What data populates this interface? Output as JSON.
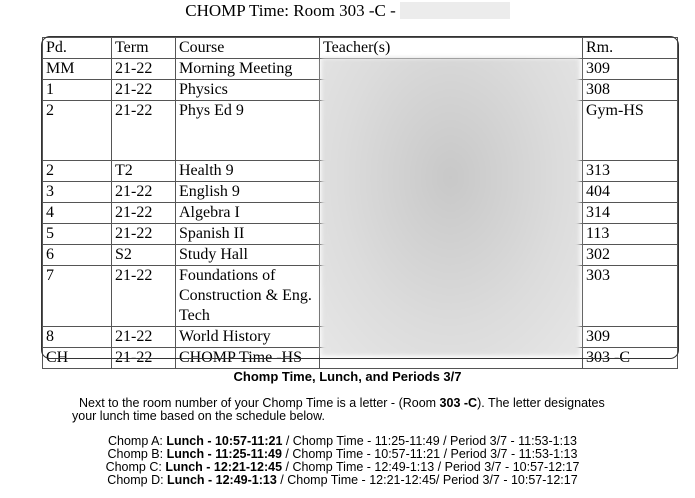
{
  "title": "CHOMP Time: Room 303 -C -",
  "table": {
    "headers": [
      "Pd.",
      "Term",
      "Course",
      "Teacher(s)",
      "Rm."
    ],
    "rows": [
      {
        "pd": "MM",
        "term": "21-22",
        "course": "Morning Meeting",
        "room": "309",
        "lines": 1
      },
      {
        "pd": "1",
        "term": "21-22",
        "course": "Physics",
        "room": "308",
        "lines": 1
      },
      {
        "pd": "2",
        "term": "21-22",
        "course": "Phys Ed 9",
        "room": "Gym-HS",
        "lines": 3
      },
      {
        "pd": "2",
        "term": "T2",
        "course": "Health 9",
        "room": "313",
        "lines": 1
      },
      {
        "pd": "3",
        "term": "21-22",
        "course": "English 9",
        "room": "404",
        "lines": 1
      },
      {
        "pd": "4",
        "term": "21-22",
        "course": "Algebra I",
        "room": "314",
        "lines": 1
      },
      {
        "pd": "5",
        "term": "21-22",
        "course": "Spanish II",
        "room": "113",
        "lines": 1
      },
      {
        "pd": "6",
        "term": "S2",
        "course": "Study Hall",
        "room": "302",
        "lines": 1
      },
      {
        "pd": "7",
        "term": "21-22",
        "course": "Foundations of Construction & Eng. Tech",
        "room": "303",
        "lines": 3
      },
      {
        "pd": "8",
        "term": "21-22",
        "course": "World History",
        "room": "309",
        "lines": 1
      },
      {
        "pd": "CH",
        "term": "21-22",
        "course": "CHOMP Time -HS",
        "room": "303 -C",
        "lines": 1
      }
    ]
  },
  "info": {
    "heading": "Chomp Time, Lunch, and Periods 3/7",
    "para_a": "Next to the room number of your Chomp Time is a letter - (Room ",
    "para_bold": "303 -C",
    "para_b": "). The letter designates",
    "para_line2": "your lunch time based on the schedule below.",
    "schedule": [
      {
        "label": "Chomp A: ",
        "lunch": "Lunch - 10:57-11:21",
        "rest": " / Chomp Time - 11:25-11:49 / Period 3/7 - 11:53-1:13"
      },
      {
        "label": "Chomp B: ",
        "lunch": "Lunch - 11:25-11:49",
        "rest": " / Chomp Time - 10:57-11:21 / Period 3/7 - 11:53-1:13"
      },
      {
        "label": "Chomp C: ",
        "lunch": "Lunch - 12:21-12:45",
        "rest": " / Chomp Time - 12:49-1:13 / Period 3/7 - 10:57-12:17"
      },
      {
        "label": "Chomp D: ",
        "lunch": "Lunch - 12:49-1:13",
        "rest": " / Chomp Time - 12:21-12:45/ Period 3/7 - 10:57-12:17"
      }
    ]
  }
}
